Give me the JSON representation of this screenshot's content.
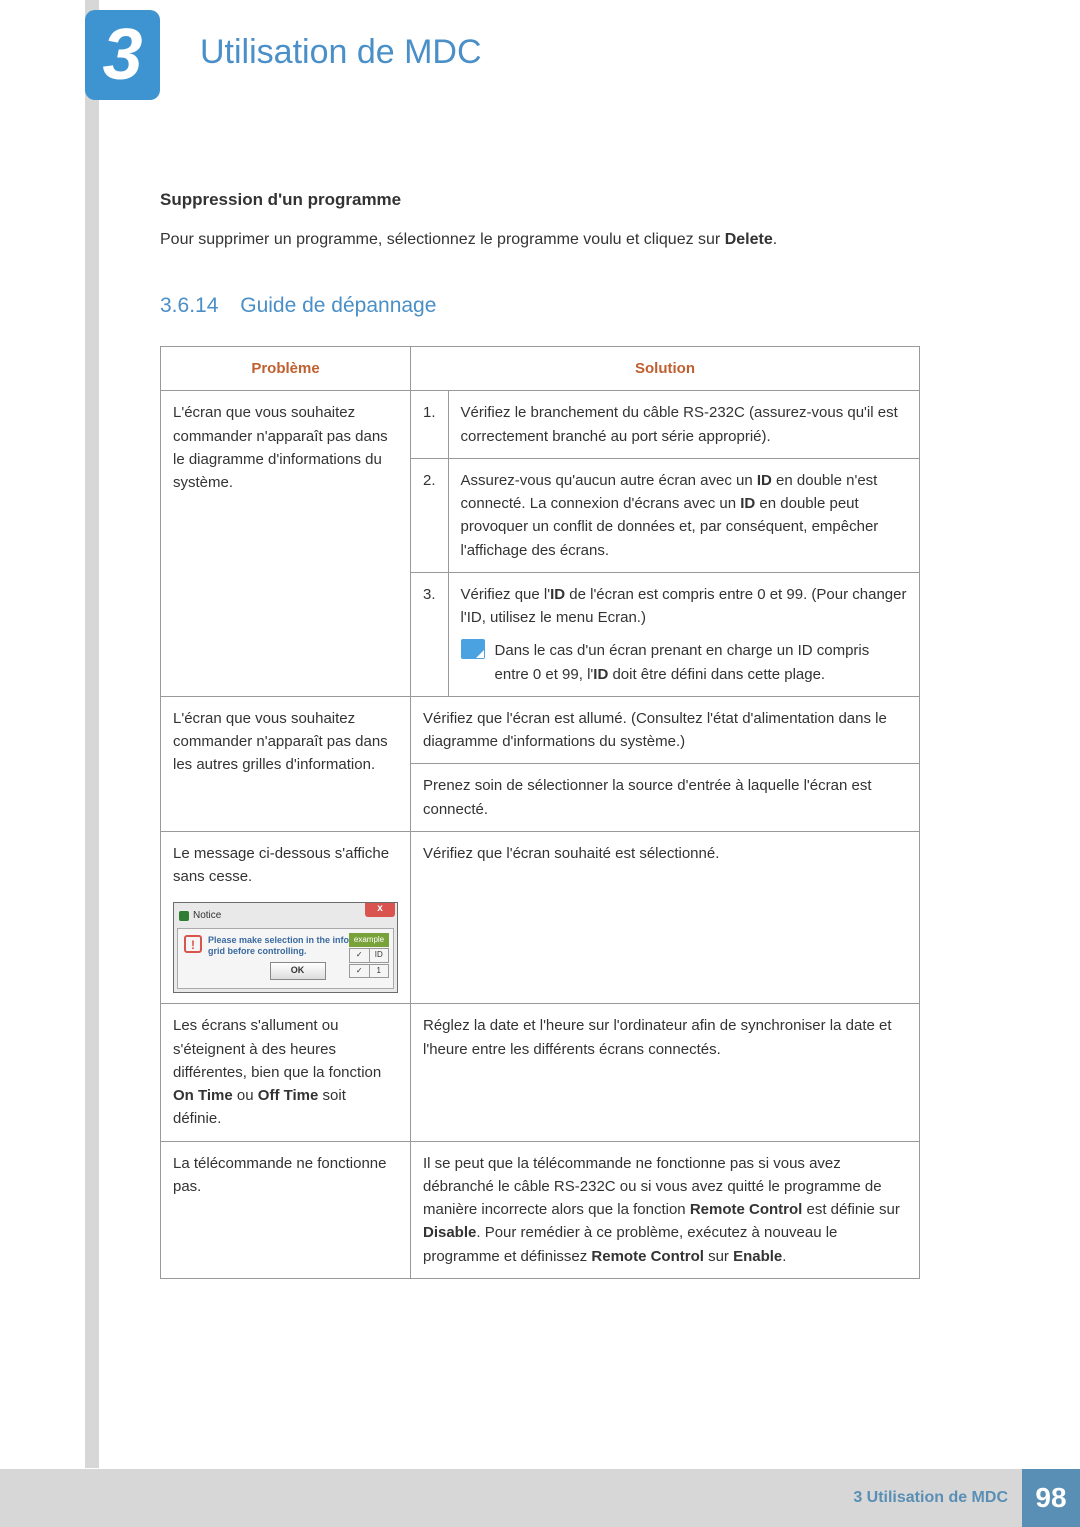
{
  "chapter": {
    "number": "3",
    "title": "Utilisation de MDC"
  },
  "content": {
    "subheading": "Suppression d'un programme",
    "intro_pre": "Pour supprimer un programme, sélectionnez le programme voulu et cliquez sur ",
    "intro_bold": "Delete",
    "intro_post": ".",
    "section_number": "3.6.14",
    "section_title": "Guide de dépannage"
  },
  "table": {
    "header_problem": "Problème",
    "header_solution": "Solution",
    "header_color": "#c06030",
    "border_color": "#999999",
    "rows": {
      "r1_problem": "L'écran que vous souhaitez commander n'apparaît pas dans le diagramme d'informations du système.",
      "r1_s1": "Vérifiez le branchement du câble RS-232C (assurez-vous qu'il est correctement branché au port série approprié).",
      "r1_s2_a": "Assurez-vous qu'aucun autre écran avec un ",
      "r1_s2_b": " en double n'est connecté. La connexion d'écrans avec un ",
      "r1_s2_c": " en double peut provoquer un conflit de données et, par conséquent, empêcher l'affichage des écrans.",
      "r1_s3_a": "Vérifiez que l'",
      "r1_s3_b": " de l'écran est compris entre 0 et 99. (Pour changer l'ID, utilisez le menu Ecran.)",
      "r1_s3_note_a": "Dans le cas d'un écran prenant en charge un ID compris entre 0 et 99, l'",
      "r1_s3_note_b": " doit être défini dans cette plage.",
      "r2_problem": "L'écran que vous souhaitez commander n'apparaît pas dans les autres grilles d'information.",
      "r2_s1": "Vérifiez que l'écran est allumé. (Consultez l'état d'alimentation dans le diagramme d'informations du système.)",
      "r2_s2": "Prenez soin de sélectionner la source d'entrée à laquelle l'écran est connecté.",
      "r3_problem": "Le message ci-dessous s'affiche sans cesse.",
      "r3_solution": "Vérifiez que l'écran souhaité est sélectionné.",
      "r4_problem_a": "Les écrans s'allument ou s'éteignent à des heures différentes, bien que la fonction ",
      "r4_problem_b": " ou ",
      "r4_problem_c": " soit définie.",
      "r4_solution": "Réglez la date et l'heure sur l'ordinateur afin de synchroniser la date et l'heure entre les différents écrans connectés.",
      "r5_problem": "La télécommande ne fonctionne pas.",
      "r5_s_a": "Il se peut que la télécommande ne fonctionne pas si vous avez débranché le câble RS-232C ou si vous avez quitté le programme de manière incorrecte alors que la fonction ",
      "r5_s_b": " est définie sur ",
      "r5_s_c": ". Pour remédier à ce problème, exécutez à nouveau le programme et définissez ",
      "r5_s_d": " sur ",
      "r5_s_e": "."
    },
    "bold": {
      "id": "ID",
      "on_time": "On Time",
      "off_time": "Off Time",
      "remote_control": "Remote Control",
      "disable": "Disable",
      "enable": "Enable"
    },
    "numbers": {
      "n1": "1.",
      "n2": "2.",
      "n3": "3."
    }
  },
  "dialog": {
    "title": "Notice",
    "message": "Please make selection in the information grid before controlling.",
    "ok": "OK",
    "example": "example",
    "id_label": "ID",
    "check": "✓",
    "num": "1"
  },
  "footer": {
    "text": "3 Utilisation de MDC",
    "page": "98",
    "bg": "#d7d7d7",
    "accent": "#5a8fb5"
  },
  "colors": {
    "accent_blue": "#4a8fc7",
    "badge_blue": "#3d94d1"
  }
}
